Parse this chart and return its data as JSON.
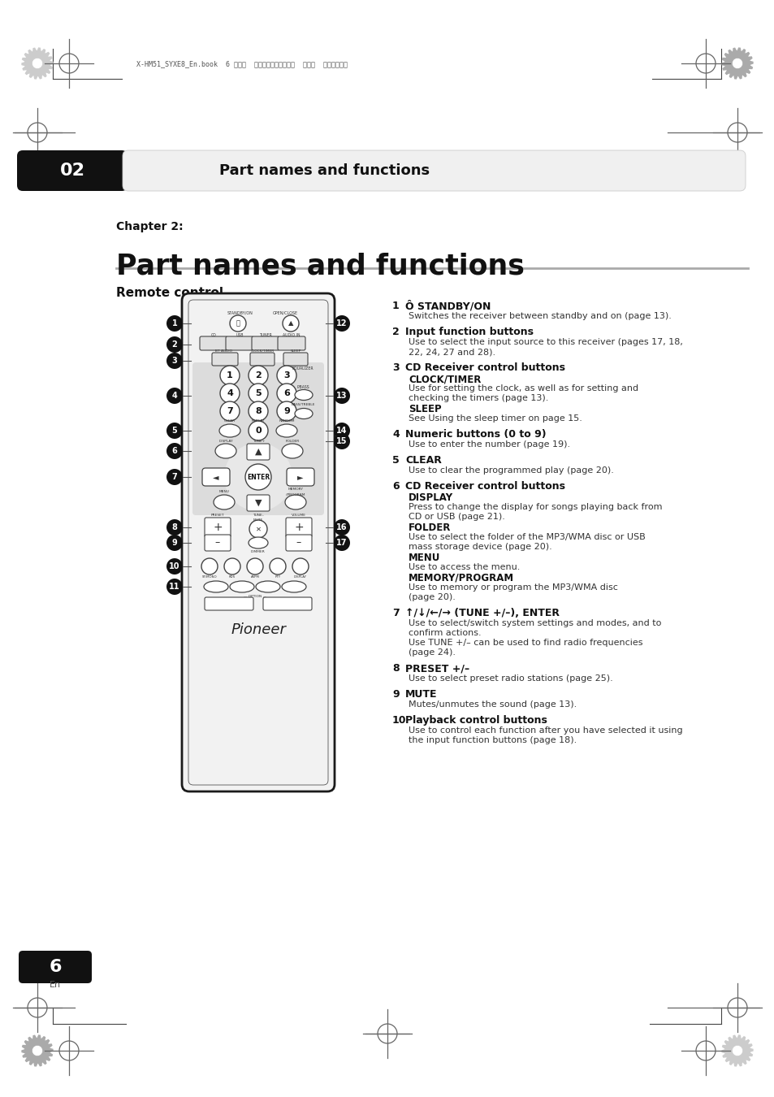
{
  "bg": "#ffffff",
  "top_meta": "X-HM51_SYXE8_En.book  6 ページ  ２０１３年３月２８日  木曜日  午後２時１分",
  "header_num": "02",
  "header_title": "Part names and functions",
  "chapter_label": "Chapter 2:",
  "chapter_title": "Part names and functions",
  "section_label": "Remote control",
  "page_num": "6",
  "right_entries": [
    {
      "num": "1",
      "title": "Ô STANDBY/ON",
      "lines": [
        "Switches the receiver between standby and on (page 13)."
      ]
    },
    {
      "num": "2",
      "title": "Input function buttons",
      "lines": [
        "Use to select the input source to this receiver (pages 17, 18,",
        "22, 24, 27 and 28)."
      ]
    },
    {
      "num": "3",
      "title": "CD Receiver control buttons",
      "subs": [
        {
          "bold": "CLOCK/TIMER",
          "lines": [
            "Use for setting the clock, as well as for setting and",
            "checking the timers (page 13)."
          ]
        },
        {
          "bold": "SLEEP",
          "lines": [
            "See Using the sleep timer on page 15."
          ]
        }
      ]
    },
    {
      "num": "4",
      "title": "Numeric buttons (0 to 9)",
      "lines": [
        "Use to enter the number (page 19)."
      ]
    },
    {
      "num": "5",
      "title": "CLEAR",
      "lines": [
        "Use to clear the programmed play (page 20)."
      ]
    },
    {
      "num": "6",
      "title": "CD Receiver control buttons",
      "subs": [
        {
          "bold": "DISPLAY",
          "lines": [
            "Press to change the display for songs playing back from",
            "CD or USB (page 21)."
          ]
        },
        {
          "bold": "FOLDER",
          "lines": [
            "Use to select the folder of the MP3/WMA disc or USB",
            "mass storage device (page 20)."
          ]
        },
        {
          "bold": "MENU",
          "lines": [
            "Use to access the menu."
          ]
        },
        {
          "bold": "MEMORY/PROGRAM",
          "lines": [
            "Use to memory or program the MP3/WMA disc",
            "(page 20)."
          ]
        }
      ]
    },
    {
      "num": "7",
      "title": "↑/↓/←/→ (TUNE +/–), ENTER",
      "lines": [
        "Use to select/switch system settings and modes, and to",
        "confirm actions."
      ],
      "extra": [
        "Use TUNE +/– can be used to find radio frequencies",
        "(page 24)."
      ]
    },
    {
      "num": "8",
      "title": "PRESET +/–",
      "lines": [
        "Use to select preset radio stations (page 25)."
      ]
    },
    {
      "num": "9",
      "title": "MUTE",
      "lines": [
        "Mutes/unmutes the sound (page 13)."
      ]
    },
    {
      "num": "10",
      "title": "Playback control buttons",
      "lines": [
        "Use to control each function after you have selected it using",
        "the input function buttons (page 18)."
      ]
    }
  ]
}
